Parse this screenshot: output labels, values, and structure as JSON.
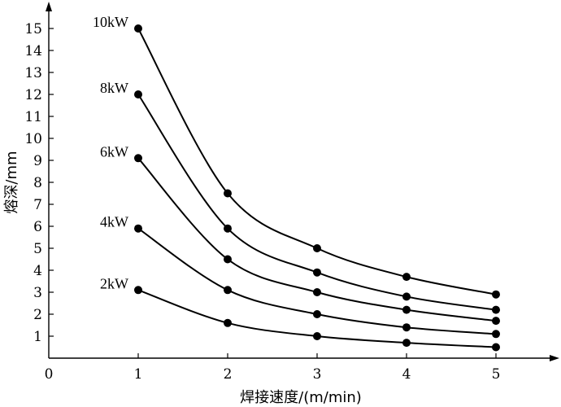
{
  "chart_data": {
    "type": "line",
    "xlabel": "焊接速度/(m/min)",
    "ylabel": "熔深/mm",
    "xlim": [
      0,
      5.6
    ],
    "ylim": [
      0,
      16.2
    ],
    "origin_label": "0",
    "x_ticks": [
      1,
      2,
      3,
      4,
      5
    ],
    "y_ticks": [
      1,
      2,
      3,
      4,
      5,
      6,
      7,
      8,
      9,
      10,
      11,
      12,
      13,
      14,
      15
    ],
    "grid": false,
    "legend": "none",
    "x": [
      1,
      2,
      3,
      4,
      5
    ],
    "series": [
      {
        "name": "10kW",
        "values": [
          15.0,
          7.5,
          5.0,
          3.7,
          2.9
        ]
      },
      {
        "name": "8kW",
        "values": [
          12.0,
          5.9,
          3.9,
          2.8,
          2.2
        ]
      },
      {
        "name": "6kW",
        "values": [
          9.1,
          4.5,
          3.0,
          2.2,
          1.7
        ]
      },
      {
        "name": "4kW",
        "values": [
          5.9,
          3.1,
          2.0,
          1.4,
          1.1
        ]
      },
      {
        "name": "2kW",
        "values": [
          3.1,
          1.6,
          1.0,
          0.7,
          0.5
        ]
      }
    ]
  }
}
